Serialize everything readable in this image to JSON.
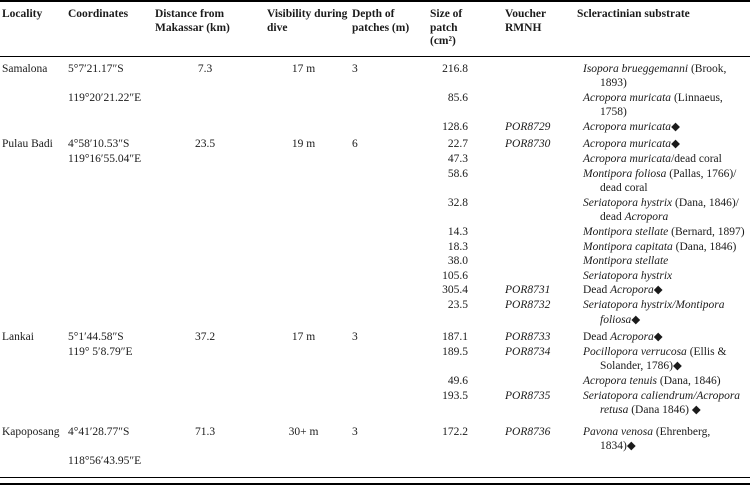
{
  "table": {
    "header": {
      "locality": "Locality",
      "coordinates": "Coordinates",
      "distance": "Distance from Makassar (km)",
      "visibility": "Visibility during dive",
      "depth": "Depth of patches (m)",
      "size": "Size of patch (cm²)",
      "voucher": "Voucher RMNH",
      "substrate": "Scleractinian substrate"
    },
    "rows": [
      {
        "locality": "Samalona",
        "coordinates": "5°7′21.17″S",
        "distance": "7.3",
        "visibility": "17 m",
        "depth": "3",
        "size": "216.8",
        "voucher": "",
        "substrate": [
          {
            "t": "Isopora brueggemanni",
            "i": 1
          },
          {
            "t": " (Brook, 1893)",
            "i": 0
          }
        ]
      },
      {
        "coordinates": "119°20′21.22″E",
        "size": "85.6",
        "voucher": "",
        "substrate": [
          {
            "t": "Acropora muricata",
            "i": 1
          },
          {
            "t": " (Linnaeus, 1758)",
            "i": 0
          }
        ]
      },
      {
        "size": "128.6",
        "voucher": "POR8729",
        "substrate": [
          {
            "t": "Acropora muricata",
            "i": 1
          },
          {
            "t": "◆",
            "i": 0
          }
        ]
      },
      {
        "gap": "sm",
        "locality": "Pulau Badi",
        "coordinates": "4°58′10.53″S",
        "distance": "23.5",
        "visibility": "19 m",
        "depth": "6",
        "size": "22.7",
        "voucher": "POR8730",
        "substrate": [
          {
            "t": "Acropora muricata",
            "i": 1
          },
          {
            "t": "◆",
            "i": 0
          }
        ]
      },
      {
        "coordinates": "119°16′55.04″E",
        "size": "47.3",
        "voucher": "",
        "substrate": [
          {
            "t": "Acropora muricata",
            "i": 1
          },
          {
            "t": "/dead coral",
            "i": 0
          }
        ]
      },
      {
        "size": "58.6",
        "voucher": "",
        "substrate": [
          {
            "t": "Montipora foliosa",
            "i": 1
          },
          {
            "t": " (Pallas, 1766)/ dead coral",
            "i": 0
          }
        ]
      },
      {
        "size": "32.8",
        "voucher": "",
        "substrate": [
          {
            "t": "Seriatopora hystrix",
            "i": 1
          },
          {
            "t": " (Dana, 1846)/ dead ",
            "i": 0
          },
          {
            "t": "Acropora",
            "i": 1
          }
        ]
      },
      {
        "size": "14.3",
        "voucher": "",
        "substrate": [
          {
            "t": "Montipora stellate",
            "i": 1
          },
          {
            "t": " (Bernard, 1897)",
            "i": 0
          }
        ]
      },
      {
        "size": "18.3",
        "voucher": "",
        "substrate": [
          {
            "t": "Montipora capitata",
            "i": 1
          },
          {
            "t": " (Dana, 1846)",
            "i": 0
          }
        ]
      },
      {
        "size": "38.0",
        "voucher": "",
        "substrate": [
          {
            "t": "Montipora stellate",
            "i": 1
          }
        ]
      },
      {
        "size": "105.6",
        "voucher": "",
        "substrate": [
          {
            "t": "Seriatopora hystrix",
            "i": 1
          }
        ]
      },
      {
        "size": "305.4",
        "voucher": "POR8731",
        "substrate": [
          {
            "t": "Dead ",
            "i": 0
          },
          {
            "t": "Acropora",
            "i": 1
          },
          {
            "t": "◆",
            "i": 0
          }
        ]
      },
      {
        "size": "23.5",
        "voucher": "POR8732",
        "substrate": [
          {
            "t": "Seriatopora hystrix/Montipora foliosa",
            "i": 1
          },
          {
            "t": "◆",
            "i": 0
          }
        ]
      },
      {
        "gap": "sm",
        "locality": "Lankai",
        "coordinates": "5°1′44.58″S",
        "distance": "37.2",
        "visibility": "17 m",
        "depth": "3",
        "size": "187.1",
        "voucher": "POR8733",
        "substrate": [
          {
            "t": "Dead ",
            "i": 0
          },
          {
            "t": "Acropora",
            "i": 1
          },
          {
            "t": "◆",
            "i": 0
          }
        ]
      },
      {
        "coordinates": "119° 5′8.79″E",
        "size": "189.5",
        "voucher": "POR8734",
        "substrate": [
          {
            "t": "Pocillopora verrucosa",
            "i": 1
          },
          {
            "t": " (Ellis & Solander, 1786)◆",
            "i": 0
          }
        ]
      },
      {
        "size": "49.6",
        "voucher": "",
        "substrate": [
          {
            "t": "Acropora tenuis",
            "i": 1
          },
          {
            "t": " (Dana, 1846)",
            "i": 0
          }
        ]
      },
      {
        "size": "193.5",
        "voucher": "POR8735",
        "substrate": [
          {
            "t": "Seriatopora caliendrum/Acropora retusa",
            "i": 1
          },
          {
            "t": " (Dana 1846) ◆",
            "i": 0
          }
        ]
      },
      {
        "gap": "lg",
        "locality": "Kapoposang",
        "coordinates": "4°41′28.77″S",
        "distance": "71.3",
        "visibility": "30+ m",
        "depth": "3",
        "size": "172.2",
        "voucher": "POR8736",
        "substrate": [
          {
            "t": "Pavona venosa",
            "i": 1
          },
          {
            "t": " (Ehrenberg, 1834)◆",
            "i": 0
          }
        ]
      },
      {
        "coordinates": "118°56′43.95″E",
        "size": "",
        "voucher": "",
        "substrate": []
      }
    ]
  },
  "colors": {
    "text": "#1b1b1b",
    "rule": "#000000",
    "background": "#ffffff"
  }
}
